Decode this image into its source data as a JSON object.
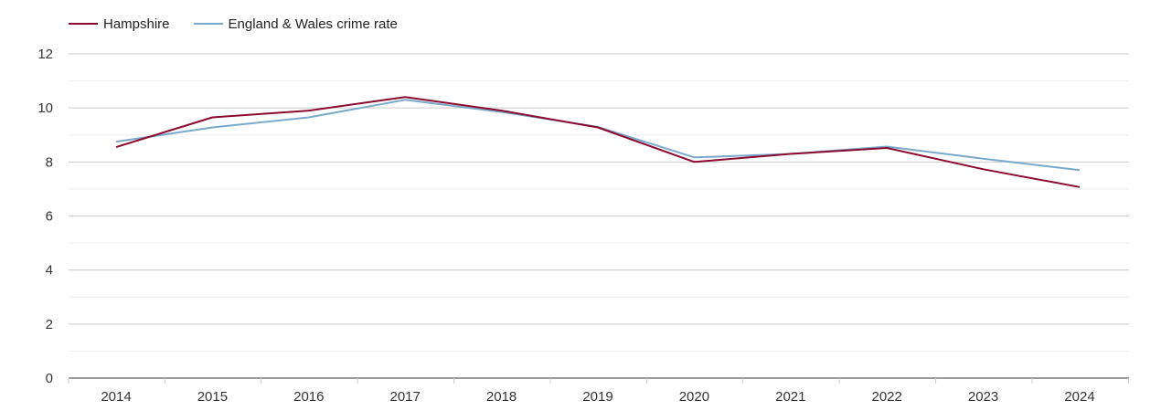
{
  "chart_data": {
    "type": "line",
    "categories": [
      "2014",
      "2015",
      "2016",
      "2017",
      "2018",
      "2019",
      "2020",
      "2021",
      "2022",
      "2023",
      "2024"
    ],
    "series": [
      {
        "name": "Hampshire",
        "color": "#8b0a2e",
        "values": [
          8.55,
          9.65,
          9.9,
          10.4,
          9.9,
          9.28,
          8.0,
          8.3,
          8.52,
          7.73,
          7.07
        ]
      },
      {
        "name": "England & Wales crime rate",
        "color": "#7ba9cc",
        "values": [
          8.75,
          9.28,
          9.65,
          10.3,
          9.85,
          9.3,
          8.17,
          8.3,
          8.57,
          8.12,
          7.7
        ]
      }
    ],
    "title": "",
    "xlabel": "",
    "ylabel": "",
    "ylim": [
      0,
      12
    ],
    "yticks": [
      "0",
      "2",
      "4",
      "6",
      "8",
      "10",
      "12"
    ],
    "legend_position": "top-left",
    "grid": true
  }
}
